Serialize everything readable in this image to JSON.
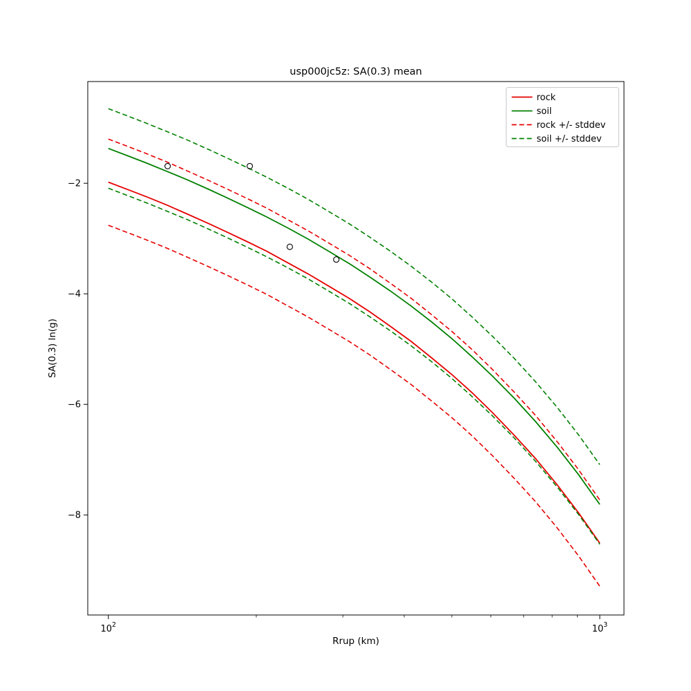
{
  "chart_data": {
    "type": "line",
    "title": "usp000jc5z: SA(0.3) mean",
    "xlabel": "Rrup (km)",
    "ylabel": "SA(0.3) ln(g)",
    "x_scale": "log",
    "grid": false,
    "x_range": [
      90.8,
      1120
    ],
    "y_range": [
      -9.81,
      -0.16
    ],
    "x_ticks_major": [
      100,
      1000
    ],
    "x_tick_labels": [
      {
        "base": "10",
        "exp": "2"
      },
      {
        "base": "10",
        "exp": "3"
      }
    ],
    "x_ticks_minor": [
      200,
      300,
      400,
      500,
      600,
      700,
      800,
      900
    ],
    "y_ticks": [
      -2,
      -4,
      -6,
      -8
    ],
    "y_tick_labels": [
      "−2",
      "−4",
      "−6",
      "−8"
    ],
    "x": [
      100,
      110,
      120,
      132,
      145,
      160,
      175,
      192,
      210,
      232,
      255,
      282,
      310,
      341,
      375,
      413,
      455,
      500,
      550,
      605,
      670,
      740,
      820,
      905,
      1000
    ],
    "series": [
      {
        "name": "rock",
        "color": "#e50000",
        "stddev": 0.78,
        "mean": [
          -1.98,
          -2.12,
          -2.25,
          -2.4,
          -2.56,
          -2.73,
          -2.89,
          -3.06,
          -3.23,
          -3.44,
          -3.64,
          -3.87,
          -4.09,
          -4.33,
          -4.59,
          -4.86,
          -5.16,
          -5.46,
          -5.79,
          -6.15,
          -6.56,
          -6.98,
          -7.46,
          -7.96,
          -8.51
        ]
      },
      {
        "name": "soil",
        "color": "#008000",
        "stddev": 0.72,
        "mean": [
          -1.37,
          -1.51,
          -1.64,
          -1.79,
          -1.94,
          -2.11,
          -2.27,
          -2.44,
          -2.61,
          -2.81,
          -3.01,
          -3.24,
          -3.46,
          -3.7,
          -3.95,
          -4.22,
          -4.51,
          -4.81,
          -5.14,
          -5.49,
          -5.89,
          -6.31,
          -6.78,
          -7.27,
          -7.81
        ]
      }
    ],
    "points": {
      "marker": "open-circle",
      "color": "#000000",
      "x": [
        132,
        194,
        234,
        291
      ],
      "y": [
        -1.69,
        -1.69,
        -3.15,
        -3.38
      ]
    },
    "legend": {
      "position": "upper right",
      "entries": [
        {
          "label": "rock",
          "color": "#e50000",
          "dash": "solid"
        },
        {
          "label": "soil",
          "color": "#008000",
          "dash": "solid"
        },
        {
          "label": "rock +/- stddev",
          "color": "#e50000",
          "dash": "dashed"
        },
        {
          "label": "soil +/- stddev",
          "color": "#008000",
          "dash": "dashed"
        }
      ]
    }
  }
}
